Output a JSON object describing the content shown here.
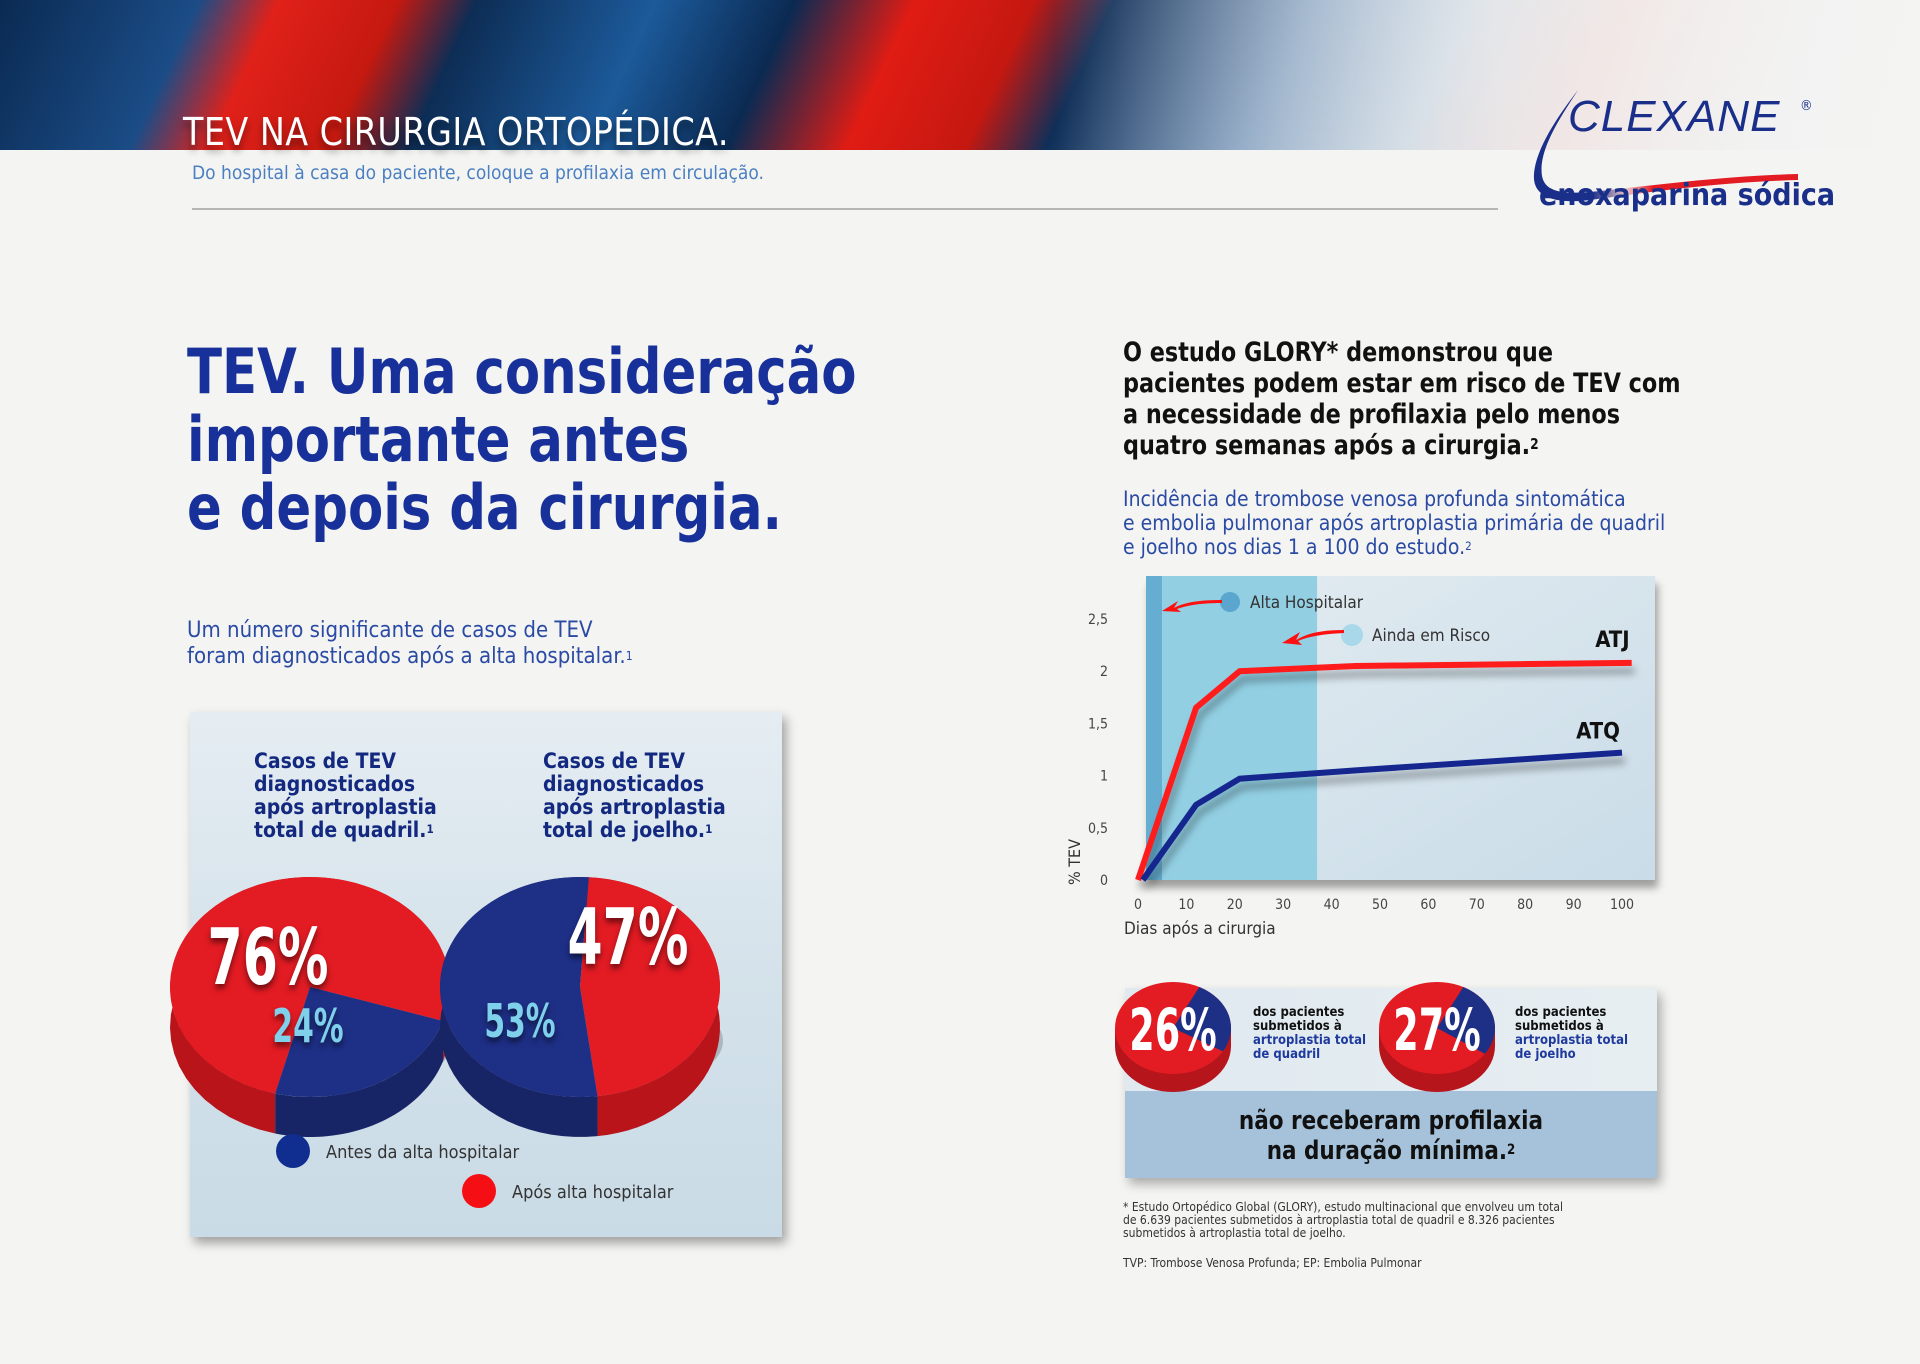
{
  "header": {
    "title": "TEV NA CIRURGIA ORTOPÉDICA.",
    "subtitle": "Do hospital à casa do paciente, coloque a profilaxia em circulação."
  },
  "logo": {
    "brand": "CLEXANE",
    "registered": "®",
    "generic_name": "enoxaparina sódica"
  },
  "left": {
    "headline": "TEV. Uma consideração\nimportante antes\ne depois da cirurgia.",
    "intro": "Um número significante de casos de TEV\nforam diagnosticados após a alta hospitalar.",
    "intro_ref": "1"
  },
  "colors": {
    "red": "#e31b23",
    "navy": "#1e2f86",
    "light_blue_label": "#7fd0ea",
    "brand_blue": "#17309a"
  },
  "chart_data": [
    {
      "type": "pie",
      "title": "Casos de TEV\ndiagnosticados\napós artroplastia\ntotal de quadril.",
      "title_ref": "1",
      "categories": [
        "Após alta hospitalar",
        "Antes da alta hospitalar"
      ],
      "values": [
        76,
        24
      ],
      "labels": [
        "76%",
        "24%"
      ]
    },
    {
      "type": "pie",
      "title": "Casos de TEV\ndiagnosticados\napós artroplastia\ntotal de joelho.",
      "title_ref": "1",
      "categories": [
        "Após alta hospitalar",
        "Antes da alta hospitalar"
      ],
      "values": [
        47,
        53
      ],
      "labels": [
        "47%",
        "53%"
      ]
    },
    {
      "type": "line",
      "xlabel": "Dias após a cirurgia",
      "ylabel": "% TEV",
      "xlim": [
        0,
        100
      ],
      "ylim": [
        0,
        2.5
      ],
      "xticks": [
        "0",
        "10",
        "20",
        "30",
        "40",
        "50",
        "60",
        "70",
        "80",
        "90",
        "100"
      ],
      "yticks": [
        "0",
        "0,5",
        "1",
        "1,5",
        "2",
        "2,5"
      ],
      "zones": [
        {
          "label": "Alta Hospitalar",
          "from": 0,
          "to": 5
        },
        {
          "label": "Ainda em Risco",
          "from": 5,
          "to": 37
        }
      ],
      "series": [
        {
          "name": "ATJ",
          "x": [
            0,
            12,
            21,
            45,
            102
          ],
          "y": [
            0,
            1.65,
            2.0,
            2.05,
            2.08
          ]
        },
        {
          "name": "ATQ",
          "x": [
            1,
            12,
            21,
            45,
            100
          ],
          "y": [
            0,
            0.72,
            0.97,
            1.05,
            1.22
          ]
        }
      ]
    }
  ],
  "legend": {
    "before": "Antes da alta hospitalar",
    "after": "Após alta hospitalar"
  },
  "right": {
    "glory_head": "O estudo GLORY* demonstrou que\npacientes podem estar em risco de TEV com\na necessidade de profilaxia pelo menos\nquatro semanas após a cirurgia.",
    "glory_ref": "2",
    "chart_desc": "Incidência de trombose venosa profunda sintomática\ne embolia pulmonar após artroplastia primária de quadril\ne joelho nos dias 1 a 100 do estudo.",
    "chart_desc_ref": "2"
  },
  "stats": [
    {
      "value": "26%",
      "percent": 26,
      "line1": "dos pacientes",
      "line2": "submetidos à",
      "line3": "artroplastia total",
      "line4": "de quadril"
    },
    {
      "value": "27%",
      "percent": 27,
      "line1": "dos pacientes",
      "line2": "submetidos à",
      "line3": "artroplastia total",
      "line4": "de joelho"
    }
  ],
  "stats_conclusion": "não receberam profilaxia\nna duração mínima.",
  "stats_conclusion_ref": "2",
  "footnote": "* Estudo Ortopédico Global (GLORY), estudo multinacional que envolveu um total\nde 6.639 pacientes submetidos à artroplastia total de quadril e 8.326 pacientes\nsubmetidos à artroplastia total de joelho.",
  "abbreviations": "TVP: Trombose Venosa Profunda; EP: Embolia Pulmonar"
}
